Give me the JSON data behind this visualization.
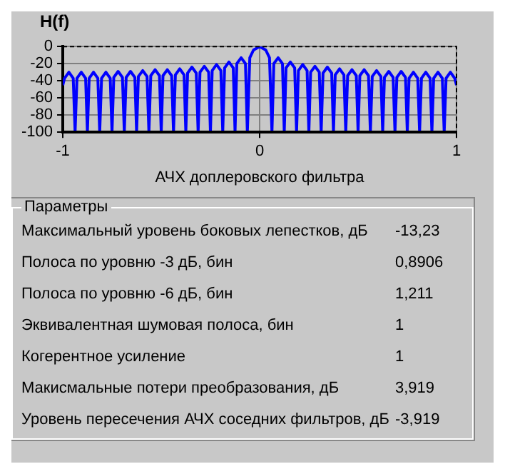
{
  "chart_data": [
    {
      "type": "line",
      "ylabel": "H(f)",
      "xlabel": "АЧХ доплеровского фильтра",
      "xlim": [
        -1,
        1
      ],
      "xticks": [
        -1,
        0,
        1
      ],
      "ylim": [
        -100,
        0
      ],
      "yticks": [
        -100,
        -80,
        -60,
        -40,
        -20,
        0
      ],
      "grid": true,
      "legend": false,
      "marker": "none",
      "line_style": "solid",
      "x": [
        -1,
        -0.991,
        -0.969,
        -0.947,
        -0.9375,
        -0.928,
        -0.906,
        -0.884,
        -0.875,
        -0.866,
        -0.844,
        -0.822,
        -0.8125,
        -0.803,
        -0.781,
        -0.759,
        -0.75,
        -0.741,
        -0.719,
        -0.697,
        -0.6875,
        -0.678,
        -0.656,
        -0.634,
        -0.625,
        -0.616,
        -0.594,
        -0.572,
        -0.5625,
        -0.553,
        -0.531,
        -0.509,
        -0.5,
        -0.491,
        -0.469,
        -0.447,
        -0.4375,
        -0.428,
        -0.406,
        -0.384,
        -0.375,
        -0.366,
        -0.344,
        -0.322,
        -0.3125,
        -0.303,
        -0.281,
        -0.259,
        -0.25,
        -0.241,
        -0.219,
        -0.197,
        -0.1875,
        -0.178,
        -0.156,
        -0.134,
        -0.125,
        -0.116,
        -0.094,
        -0.072,
        -0.0625,
        -0.05,
        -0.031,
        0,
        0.031,
        0.05,
        0.0625,
        0.072,
        0.094,
        0.116,
        0.125,
        0.134,
        0.156,
        0.178,
        0.1875,
        0.197,
        0.219,
        0.241,
        0.25,
        0.259,
        0.281,
        0.303,
        0.3125,
        0.322,
        0.344,
        0.366,
        0.375,
        0.384,
        0.406,
        0.428,
        0.4375,
        0.447,
        0.469,
        0.491,
        0.5,
        0.509,
        0.531,
        0.553,
        0.5625,
        0.572,
        0.594,
        0.616,
        0.625,
        0.634,
        0.656,
        0.678,
        0.6875,
        0.697,
        0.719,
        0.741,
        0.75,
        0.759,
        0.781,
        0.803,
        0.8125,
        0.822,
        0.844,
        0.866,
        0.875,
        0.884,
        0.906,
        0.928,
        0.9375,
        0.947,
        0.969,
        0.991,
        1
      ],
      "series": [
        {
          "color": "#0000ff",
          "values": [
            -45,
            -37,
            -30,
            -37,
            -100,
            -37,
            -30,
            -37,
            -100,
            -37,
            -30,
            -37,
            -100,
            -37,
            -30,
            -37,
            -100,
            -36,
            -29,
            -36,
            -100,
            -36,
            -29,
            -36,
            -100,
            -35,
            -28,
            -35,
            -100,
            -34,
            -27,
            -34,
            -100,
            -34,
            -27,
            -34,
            -100,
            -33,
            -26,
            -33,
            -100,
            -31,
            -24,
            -31,
            -100,
            -30,
            -23,
            -30,
            -100,
            -28,
            -21,
            -28,
            -100,
            -25,
            -18,
            -25,
            -100,
            -20,
            -13,
            -20,
            -100,
            -13,
            -4,
            0,
            -4,
            -13,
            -100,
            -20,
            -13,
            -20,
            -100,
            -25,
            -18,
            -25,
            -100,
            -28,
            -21,
            -28,
            -100,
            -30,
            -23,
            -30,
            -100,
            -31,
            -24,
            -31,
            -100,
            -33,
            -26,
            -33,
            -100,
            -34,
            -27,
            -34,
            -100,
            -34,
            -27,
            -34,
            -100,
            -35,
            -28,
            -35,
            -100,
            -36,
            -29,
            -36,
            -100,
            -36,
            -29,
            -36,
            -100,
            -37,
            -30,
            -37,
            -100,
            -37,
            -30,
            -37,
            -100,
            -37,
            -30,
            -37,
            -100,
            -37,
            -30,
            -37,
            -45
          ]
        }
      ]
    },
    {
      "type": "other",
      "title": "Параметры",
      "categories": [
        "Максимальный уровень боковых лепестков, дБ",
        "Полоса по уровню -3 дБ, бин",
        "Полоса по уровню -6 дБ, бин",
        "Эквивалентная шумовая полоса, бин",
        "Когерентное усиление",
        "Макисмальные потери преобразования, дБ",
        "Уровень пересечения АЧХ соседних фильтров, дБ"
      ],
      "annotations": [
        "-13,23",
        "0,8906",
        "1,211",
        "1",
        "1",
        "3,919",
        "-3,919"
      ]
    }
  ]
}
